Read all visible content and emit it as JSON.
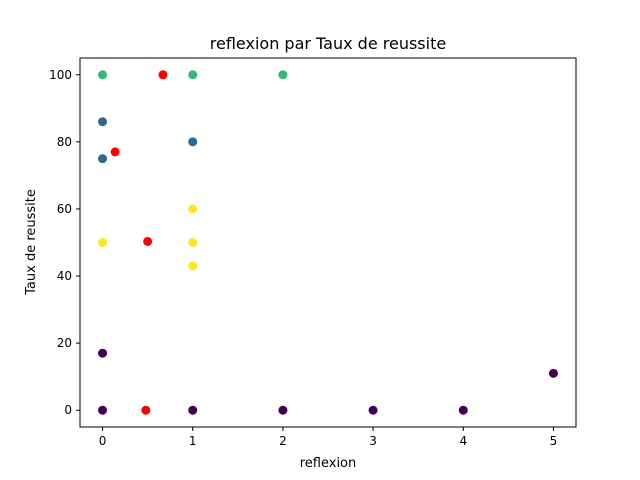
{
  "chart_data": {
    "type": "scatter",
    "title": "reflexion par Taux de reussite",
    "xlabel": "reflexion",
    "ylabel": "Taux de reussite",
    "xlim": [
      -0.25,
      5.25
    ],
    "ylim": [
      -5,
      105
    ],
    "xticks": [
      0,
      1,
      2,
      3,
      4,
      5
    ],
    "yticks": [
      0,
      20,
      40,
      60,
      80,
      100
    ],
    "grid": false,
    "series": [
      {
        "color": "#440154",
        "points": [
          [
            0,
            0
          ],
          [
            0,
            17
          ],
          [
            1,
            0
          ],
          [
            2,
            0
          ],
          [
            3,
            0
          ],
          [
            4,
            0
          ],
          [
            5,
            11
          ]
        ]
      },
      {
        "color": "#31688e",
        "points": [
          [
            0,
            86
          ],
          [
            0,
            75
          ],
          [
            1,
            80
          ]
        ]
      },
      {
        "color": "#35b779",
        "points": [
          [
            0,
            100
          ],
          [
            1,
            100
          ],
          [
            2,
            100
          ]
        ]
      },
      {
        "color": "#fde725",
        "points": [
          [
            0,
            50
          ],
          [
            1,
            60
          ],
          [
            1,
            50
          ],
          [
            1,
            43
          ]
        ]
      },
      {
        "color": "#ff0000",
        "points": [
          [
            0.67,
            100
          ],
          [
            0.14,
            77
          ],
          [
            0.5,
            50.3
          ],
          [
            0.48,
            0
          ]
        ]
      }
    ]
  }
}
